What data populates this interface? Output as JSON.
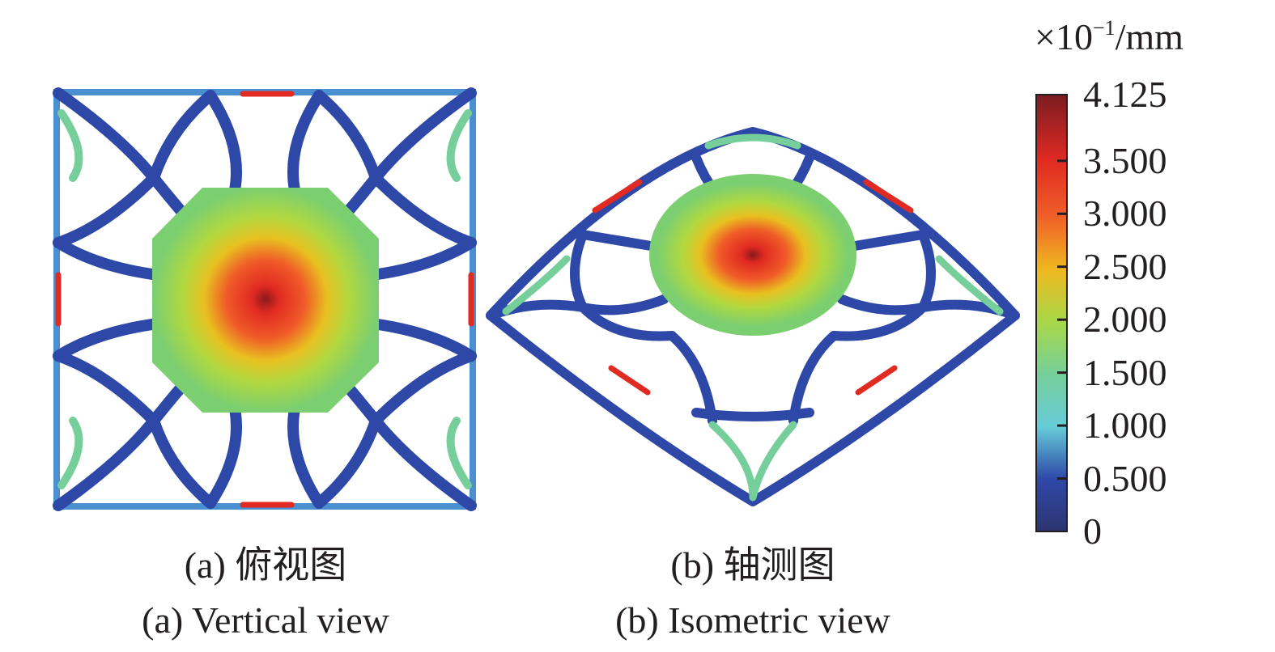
{
  "panels": [
    {
      "caption_cn": "(a) 俯视图",
      "caption_en": "(a) Vertical view"
    },
    {
      "caption_cn": "(b) 轴测图",
      "caption_en": "(b) Isometric view"
    }
  ],
  "colorbar": {
    "unit_prefix": "×10",
    "unit_exponent": "−1",
    "unit_suffix": "/mm",
    "min": 0,
    "max": 4.125,
    "tick_labels": [
      "4.125",
      "3.500",
      "3.000",
      "2.500",
      "2.000",
      "1.500",
      "1.000",
      "0.500",
      "0"
    ],
    "tick_values": [
      4.125,
      3.5,
      3.0,
      2.5,
      2.0,
      1.5,
      1.0,
      0.5,
      0
    ],
    "colormap": [
      "#2d3570",
      "#2e48a8",
      "#4a8fd0",
      "#66ccd8",
      "#76cf9a",
      "#a8d848",
      "#f0b820",
      "#f06028",
      "#e02a22",
      "#7a1c20"
    ]
  }
}
